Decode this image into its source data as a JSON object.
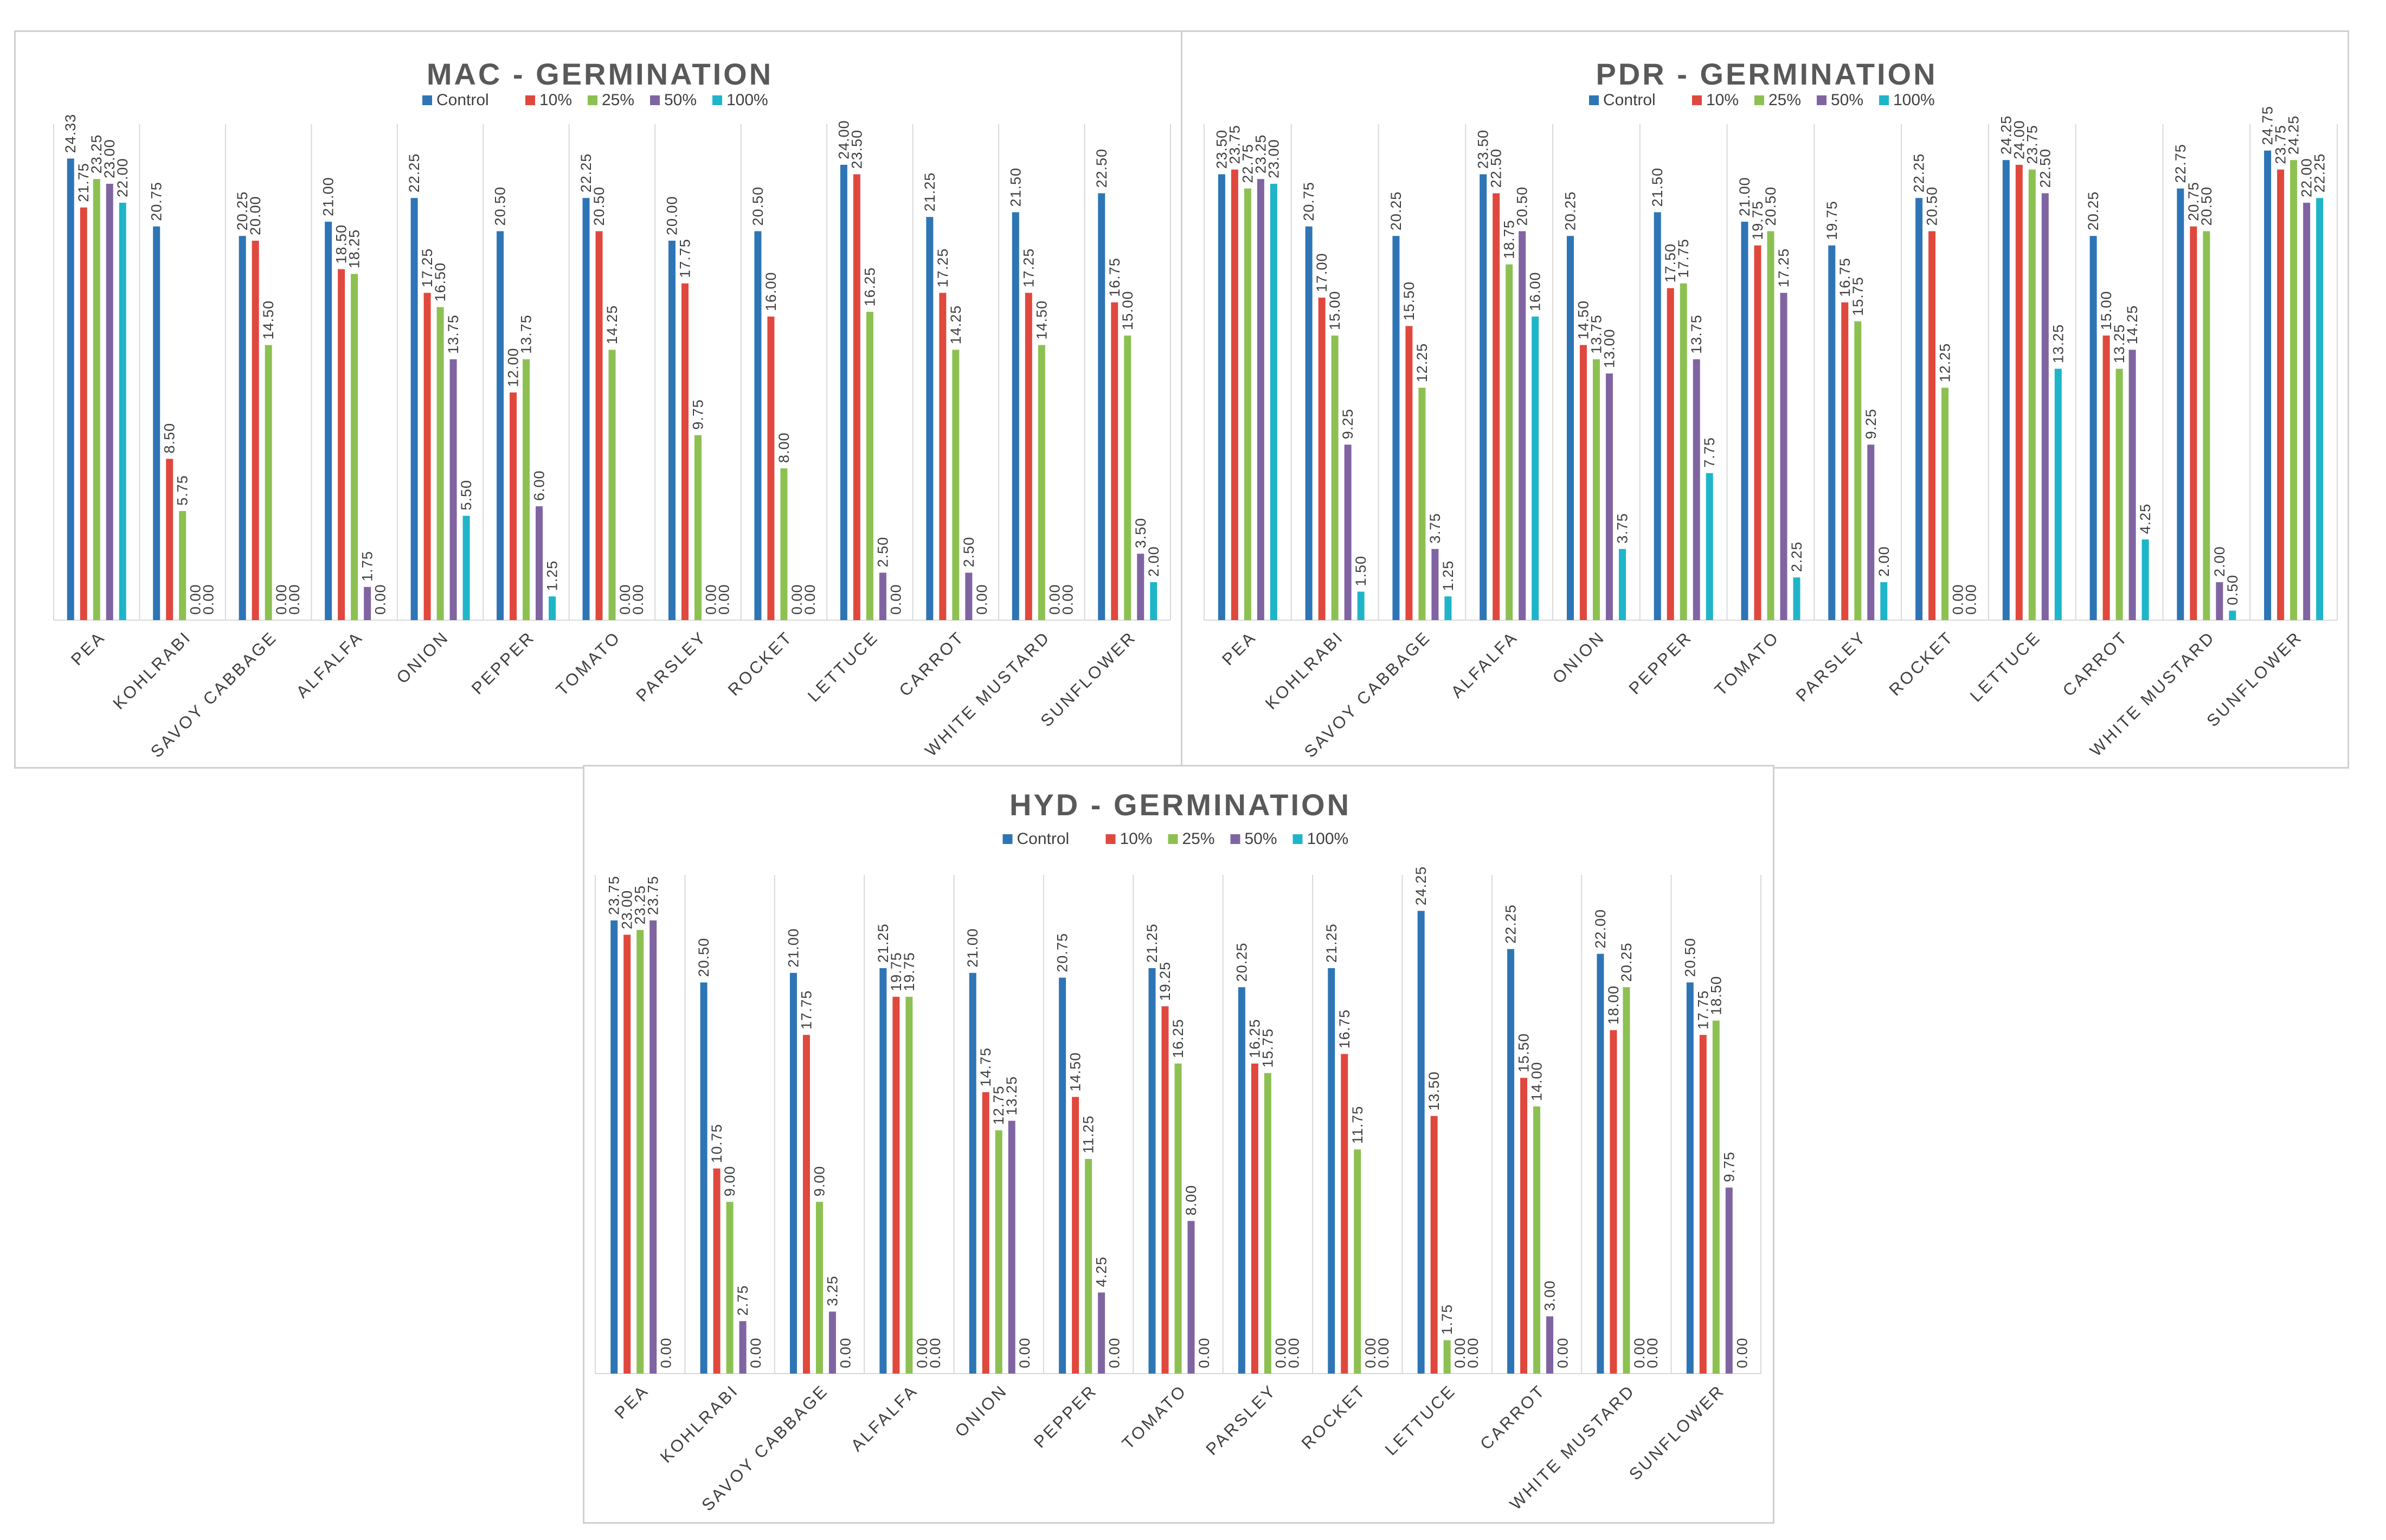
{
  "colors": {
    "Control": "#2e75b6",
    "10%": "#e0483e",
    "25%": "#8cc152",
    "50%": "#8064a2",
    "100%": "#1fb5c9"
  },
  "chart_data": [
    {
      "type": "bar",
      "title": "MAC - GERMINATION",
      "xlabel": "",
      "ylabel": "",
      "ylim": [
        0,
        25
      ],
      "legend_position": "top-center",
      "categories": [
        "PEA",
        "KOHLRABI",
        "SAVOY CABBAGE",
        "ALFALFA",
        "ONION",
        "PEPPER",
        "TOMATO",
        "PARSLEY",
        "ROCKET",
        "LETTUCE",
        "CARROT",
        "WHITE MUSTARD",
        "SUNFLOWER"
      ],
      "series": [
        {
          "name": "Control",
          "values": [
            24.33,
            20.75,
            20.25,
            21.0,
            22.25,
            20.5,
            22.25,
            20.0,
            20.5,
            24.0,
            21.25,
            21.5,
            22.5
          ],
          "labels": [
            "24.33",
            "20.75",
            "20.25",
            "21.00",
            "22.25",
            "20.50",
            "22.25",
            "20.00",
            "20.50",
            "24.00",
            "21.25",
            "21.50",
            "22.50"
          ]
        },
        {
          "name": "10%",
          "values": [
            21.75,
            8.5,
            20.0,
            18.5,
            17.25,
            12.0,
            20.5,
            17.75,
            16.0,
            23.5,
            17.25,
            17.25,
            16.75
          ],
          "labels": [
            "21.75",
            "8.50",
            "20.00",
            "18.50",
            "17.25",
            "12.00",
            "20.50",
            "17.75",
            "16.00",
            "23.50",
            "17.25",
            "17.25",
            "16.75"
          ]
        },
        {
          "name": "25%",
          "values": [
            23.25,
            5.75,
            14.5,
            18.25,
            16.5,
            13.75,
            14.25,
            9.75,
            8.0,
            16.25,
            14.25,
            14.5,
            15.0
          ],
          "labels": [
            "23.25",
            "5.75",
            "14.50",
            "18.25",
            "16.50",
            "13.75",
            "14.25",
            "9.75",
            "8.00",
            "16.25",
            "14.25",
            "14.50",
            "15.00"
          ]
        },
        {
          "name": "50%",
          "values": [
            23.0,
            0.0,
            0.0,
            1.75,
            13.75,
            6.0,
            0.0,
            0.0,
            0.0,
            2.5,
            2.5,
            0.0,
            3.5
          ],
          "labels": [
            "23.00",
            "0.00",
            "0.00",
            "1.75",
            "13.75",
            "6.00",
            "0.00",
            "0.00",
            "0.00",
            "2.50",
            "2.50",
            "0.00",
            "3.50"
          ]
        },
        {
          "name": "100%",
          "values": [
            22.0,
            0.0,
            0.0,
            0.0,
            5.5,
            1.25,
            0.0,
            0.0,
            0.0,
            0.0,
            0.0,
            0.0,
            2.0
          ],
          "labels": [
            "22.00",
            "0.00",
            "0.00",
            "0.00",
            "5.50",
            "1.25",
            "0.00",
            "0.00",
            "0.00",
            "0.00",
            "0.00",
            "0.00",
            "2.00"
          ]
        }
      ]
    },
    {
      "type": "bar",
      "title": "PDR - GERMINATION",
      "xlabel": "",
      "ylabel": "",
      "ylim": [
        0,
        25
      ],
      "legend_position": "top-center",
      "categories": [
        "PEA",
        "KOHLRABI",
        "SAVOY CABBAGE",
        "ALFALFA",
        "ONION",
        "PEPPER",
        "TOMATO",
        "PARSLEY",
        "ROCKET",
        "LETTUCE",
        "CARROT",
        "WHITE MUSTARD",
        "SUNFLOWER"
      ],
      "series": [
        {
          "name": "Control",
          "values": [
            23.5,
            20.75,
            20.25,
            23.5,
            20.25,
            21.5,
            21.0,
            19.75,
            22.25,
            24.25,
            20.25,
            22.75,
            24.75
          ],
          "labels": [
            "23.50",
            "20.75",
            "20.25",
            "23.50",
            "20.25",
            "21.50",
            "21.00",
            "19.75",
            "22.25",
            "24.25",
            "20.25",
            "22.75",
            "24.75"
          ]
        },
        {
          "name": "10%",
          "values": [
            23.75,
            17.0,
            15.5,
            22.5,
            14.5,
            17.5,
            19.75,
            16.75,
            20.5,
            24.0,
            15.0,
            20.75,
            23.75
          ],
          "labels": [
            "23.75",
            "17.00",
            "15.50",
            "22.50",
            "14.50",
            "17.50",
            "19.75",
            "16.75",
            "20.50",
            "24.00",
            "15.00",
            "20.75",
            "23.75"
          ]
        },
        {
          "name": "25%",
          "values": [
            22.75,
            15.0,
            12.25,
            18.75,
            13.75,
            17.75,
            20.5,
            15.75,
            12.25,
            23.75,
            13.25,
            20.5,
            24.25
          ],
          "labels": [
            "22.75",
            "15.00",
            "12.25",
            "18.75",
            "13.75",
            "17.75",
            "20.50",
            "15.75",
            "12.25",
            "23.75",
            "13.25",
            "20.50",
            "24.25"
          ]
        },
        {
          "name": "50%",
          "values": [
            23.25,
            9.25,
            3.75,
            20.5,
            13.0,
            13.75,
            17.25,
            9.25,
            0.0,
            22.5,
            14.25,
            2.0,
            22.0
          ],
          "labels": [
            "23.25",
            "9.25",
            "3.75",
            "20.50",
            "13.00",
            "13.75",
            "17.25",
            "9.25",
            "0.00",
            "22.50",
            "14.25",
            "2.00",
            "22.00"
          ]
        },
        {
          "name": "100%",
          "values": [
            23.0,
            1.5,
            1.25,
            16.0,
            3.75,
            7.75,
            2.25,
            2.0,
            0.0,
            13.25,
            4.25,
            0.5,
            22.25
          ],
          "labels": [
            "23.00",
            "1.50",
            "1.25",
            "16.00",
            "3.75",
            "7.75",
            "2.25",
            "2.00",
            "0.00",
            "13.25",
            "4.25",
            "0.50",
            "22.25"
          ]
        }
      ]
    },
    {
      "type": "bar",
      "title": "HYD - GERMINATION",
      "xlabel": "",
      "ylabel": "",
      "ylim": [
        0,
        25
      ],
      "legend_position": "top-center",
      "categories": [
        "PEA",
        "KOHLRABI",
        "SAVOY CABBAGE",
        "ALFALFA",
        "ONION",
        "PEPPER",
        "TOMATO",
        "PARSLEY",
        "ROCKET",
        "LETTUCE",
        "CARROT",
        "WHITE MUSTARD",
        "SUNFLOWER"
      ],
      "series": [
        {
          "name": "Control",
          "values": [
            23.75,
            20.5,
            21.0,
            21.25,
            21.0,
            20.75,
            21.25,
            20.25,
            21.25,
            24.25,
            22.25,
            22.0,
            20.5
          ],
          "labels": [
            "23.75",
            "20.50",
            "21.00",
            "21.25",
            "21.00",
            "20.75",
            "21.25",
            "20.25",
            "21.25",
            "24.25",
            "22.25",
            "22.00",
            "20.50"
          ]
        },
        {
          "name": "10%",
          "values": [
            23.0,
            10.75,
            17.75,
            19.75,
            14.75,
            14.5,
            19.25,
            16.25,
            16.75,
            13.5,
            15.5,
            18.0,
            17.75
          ],
          "labels": [
            "23.00",
            "10.75",
            "17.75",
            "19.75",
            "14.75",
            "14.50",
            "19.25",
            "16.25",
            "16.75",
            "13.50",
            "15.50",
            "18.00",
            "17.75"
          ]
        },
        {
          "name": "25%",
          "values": [
            23.25,
            9.0,
            9.0,
            19.75,
            12.75,
            11.25,
            16.25,
            15.75,
            11.75,
            1.75,
            14.0,
            20.25,
            18.5
          ],
          "labels": [
            "23.25",
            "9.00",
            "9.00",
            "19.75",
            "12.75",
            "11.25",
            "16.25",
            "15.75",
            "11.75",
            "1.75",
            "14.00",
            "20.25",
            "18.50"
          ]
        },
        {
          "name": "50%",
          "values": [
            23.75,
            2.75,
            3.25,
            0.0,
            13.25,
            4.25,
            8.0,
            0.0,
            0.0,
            0.0,
            3.0,
            0.0,
            9.75
          ],
          "labels": [
            "23.75",
            "2.75",
            "3.25",
            "0.00",
            "13.25",
            "4.25",
            "8.00",
            "0.00",
            "0.00",
            "0.00",
            "3.00",
            "0.00",
            "9.75"
          ]
        },
        {
          "name": "100%",
          "values": [
            0.0,
            0.0,
            0.0,
            0.0,
            0.0,
            0.0,
            0.0,
            0.0,
            0.0,
            0.0,
            0.0,
            0.0,
            0.0
          ],
          "labels": [
            "0.00",
            "0.00",
            "0.00",
            "0.00",
            "0.00",
            "0.00",
            "0.00",
            "0.00",
            "0.00",
            "0.00",
            "0.00",
            "0.00",
            "0.00"
          ]
        }
      ]
    }
  ]
}
